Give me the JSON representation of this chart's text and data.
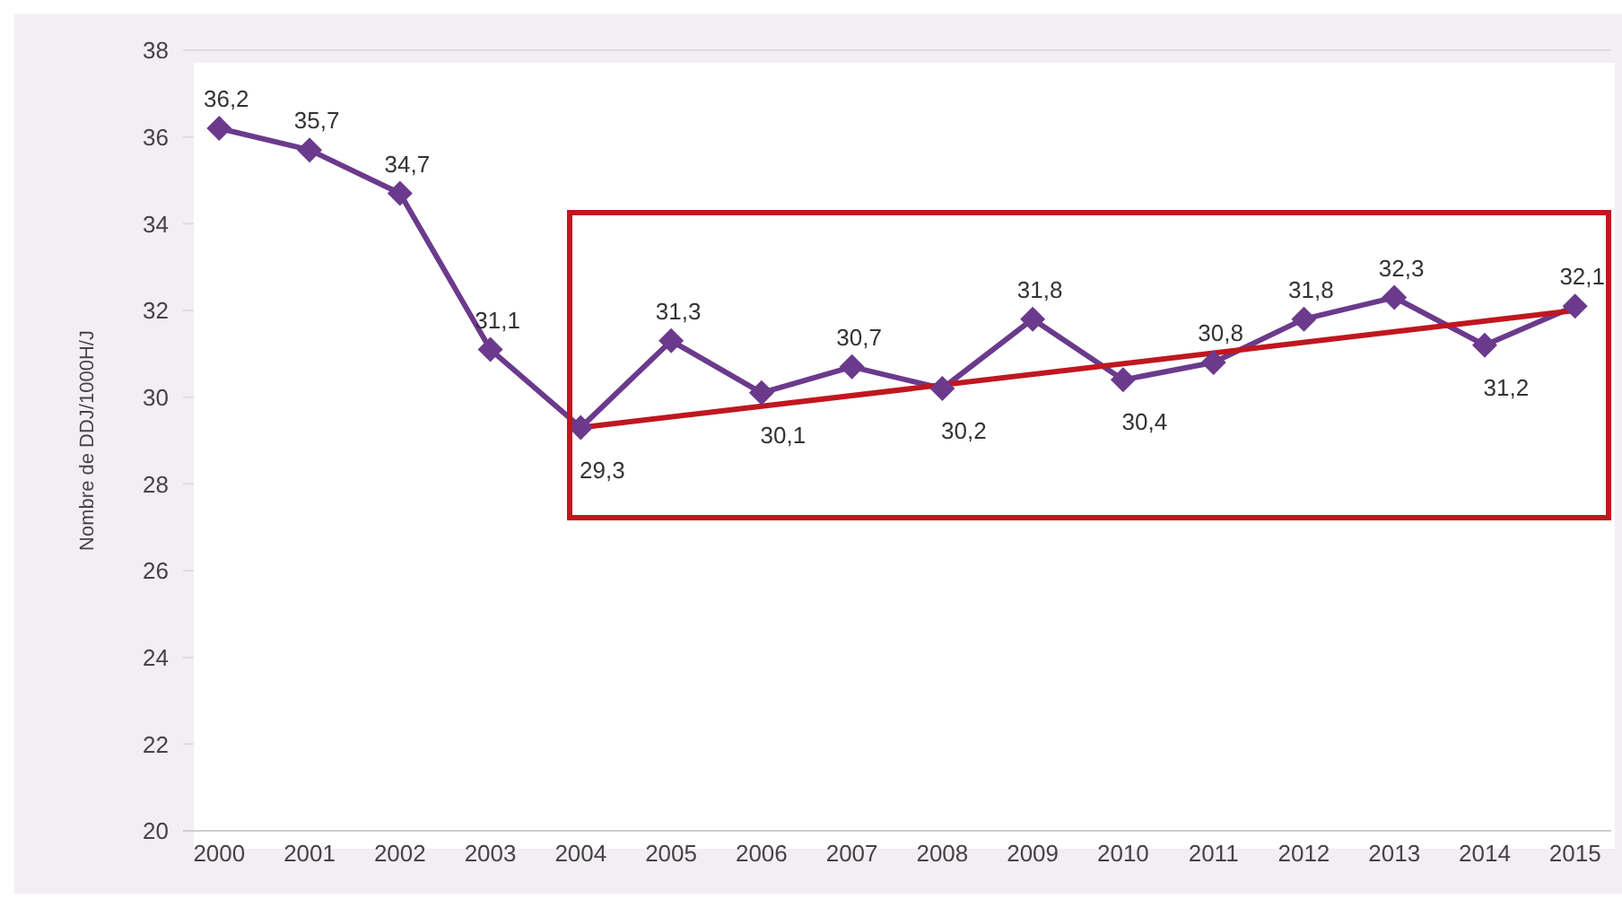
{
  "chart_data": {
    "type": "line",
    "ylabel": "Nombre de DDJ/1000H/J",
    "x": [
      2000,
      2001,
      2002,
      2003,
      2004,
      2005,
      2006,
      2007,
      2008,
      2009,
      2010,
      2011,
      2012,
      2013,
      2014,
      2015
    ],
    "series": [
      {
        "color": "#6b3a8c",
        "values": [
          36.2,
          35.7,
          34.7,
          31.1,
          29.3,
          31.3,
          30.1,
          30.7,
          30.2,
          31.8,
          30.4,
          30.8,
          31.8,
          32.3,
          31.2,
          32.1
        ],
        "value_labels": [
          "36,2",
          "35,7",
          "34,7",
          "31,1",
          "29,3",
          "31,3",
          "30,1",
          "30,7",
          "30,2",
          "31,8",
          "30,4",
          "30,8",
          "31,8",
          "32,3",
          "31,2",
          "32,1"
        ]
      },
      {
        "type": "line",
        "color": "#c0171f",
        "x": [
          2004,
          2015
        ],
        "values": [
          29.3,
          32.0
        ],
        "marker": "none"
      }
    ],
    "xlim": [
      1999.6,
      2015.4
    ],
    "xticks": [
      2000,
      2001,
      2002,
      2003,
      2004,
      2005,
      2006,
      2007,
      2008,
      2009,
      2010,
      2011,
      2012,
      2013,
      2014,
      2015
    ],
    "ylim": [
      20,
      38
    ],
    "yticks": [
      20,
      22,
      24,
      26,
      28,
      30,
      32,
      34,
      36,
      38
    ],
    "grid": "y",
    "marker": "diamond",
    "line_style": "solid"
  }
}
